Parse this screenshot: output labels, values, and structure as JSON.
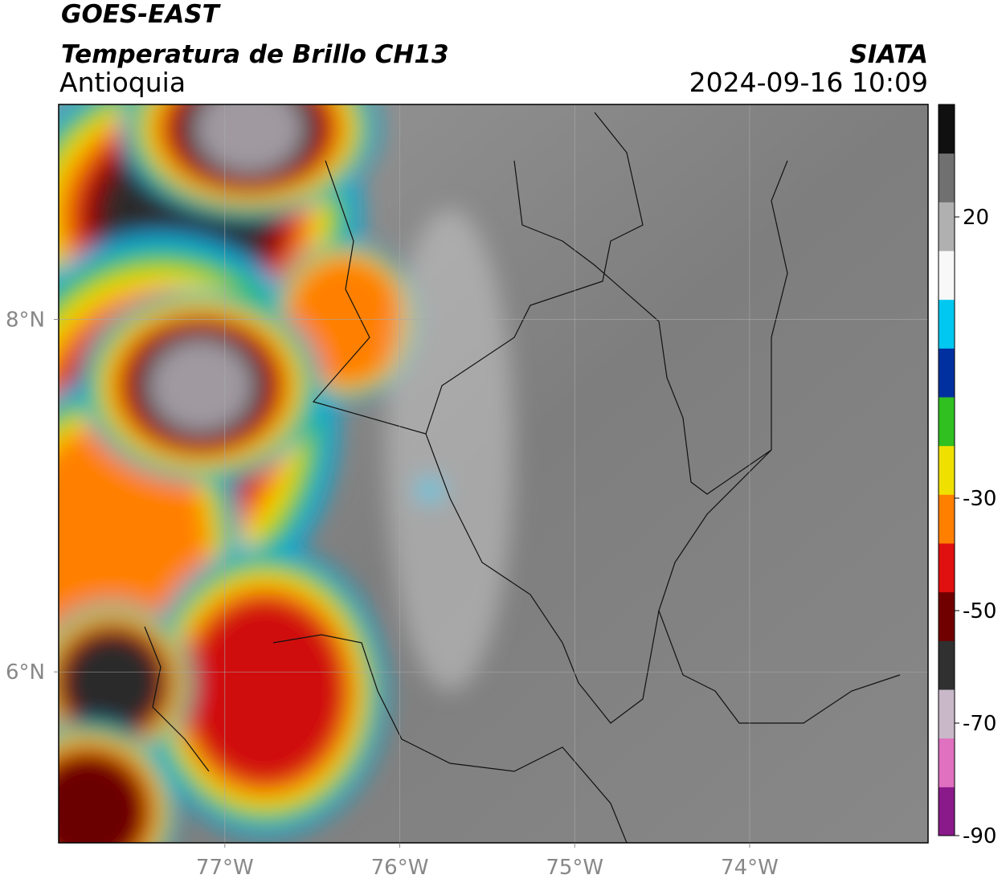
{
  "header": {
    "title": "GOES-EAST",
    "subtitle": "Temperatura de Brillo CH13",
    "region": "Antioquia",
    "source": "SIATA",
    "datetime": "2024-09-16 10:09"
  },
  "map": {
    "xlim": [
      -77.95,
      -72.98
    ],
    "ylim": [
      5.03,
      9.22
    ],
    "xticks": [
      {
        "value": -77,
        "label": "77°W"
      },
      {
        "value": -76,
        "label": "76°W"
      },
      {
        "value": -75,
        "label": "75°W"
      },
      {
        "value": -74,
        "label": "74°W"
      }
    ],
    "yticks": [
      {
        "value": 6,
        "label": "6°N"
      },
      {
        "value": 8,
        "label": "8°N"
      }
    ],
    "grid": true
  },
  "colorbar": {
    "lim": [
      -90,
      40
    ],
    "ticks": [
      20,
      -30,
      -50,
      -70,
      -90
    ],
    "colors": [
      "#8a1a8a",
      "#e070c0",
      "#c8b8c8",
      "#303030",
      "#700000",
      "#e01010",
      "#ff8000",
      "#f0e000",
      "#30c020",
      "#0030a0",
      "#00c8f0",
      "#f8f8f8",
      "#b0b0b0",
      "#707070",
      "#101010"
    ]
  }
}
